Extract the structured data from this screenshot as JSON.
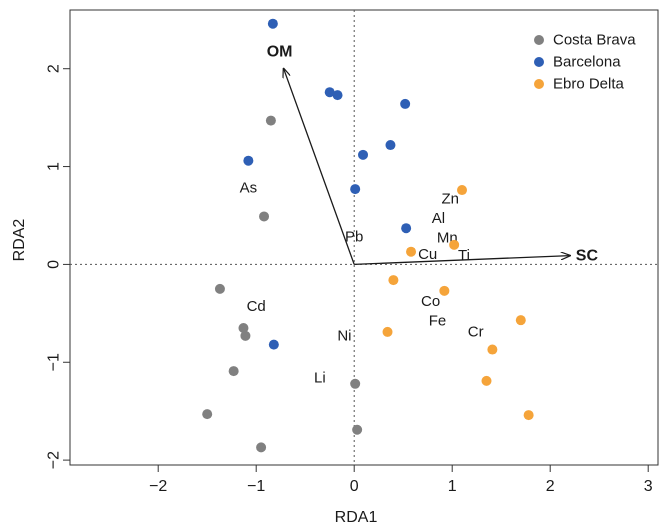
{
  "chart_data": {
    "type": "scatter",
    "xlabel": "RDA1",
    "ylabel": "RDA2",
    "xlim": [
      -2.9,
      3.1
    ],
    "ylim": [
      -2.05,
      2.6
    ],
    "xticks": [
      -2,
      -1,
      0,
      1,
      2,
      3
    ],
    "yticks": [
      -2,
      -1,
      0,
      1,
      2
    ],
    "grid": false,
    "zero_lines": "dotted",
    "legend_position": "top-right",
    "series": [
      {
        "name": "Costa Brava",
        "color": "#808080",
        "points": [
          {
            "x": -0.85,
            "y": 1.47
          },
          {
            "x": -0.92,
            "y": 0.49
          },
          {
            "x": -1.37,
            "y": -0.25
          },
          {
            "x": -1.13,
            "y": -0.65
          },
          {
            "x": -1.11,
            "y": -0.73
          },
          {
            "x": -1.23,
            "y": -1.09
          },
          {
            "x": -1.5,
            "y": -1.53
          },
          {
            "x": -0.95,
            "y": -1.87
          },
          {
            "x": 0.01,
            "y": -1.22
          },
          {
            "x": 0.03,
            "y": -1.69
          }
        ]
      },
      {
        "name": "Barcelona",
        "color": "#2e5fb5",
        "points": [
          {
            "x": -0.83,
            "y": 2.46
          },
          {
            "x": -0.25,
            "y": 1.76
          },
          {
            "x": -0.17,
            "y": 1.73
          },
          {
            "x": 0.52,
            "y": 1.64
          },
          {
            "x": 0.37,
            "y": 1.22
          },
          {
            "x": 0.09,
            "y": 1.12
          },
          {
            "x": -1.08,
            "y": 1.06
          },
          {
            "x": 0.01,
            "y": 0.77
          },
          {
            "x": 0.53,
            "y": 0.37
          },
          {
            "x": -0.82,
            "y": -0.82
          }
        ]
      },
      {
        "name": "Ebro Delta",
        "color": "#f5a43a",
        "points": [
          {
            "x": 1.1,
            "y": 0.76
          },
          {
            "x": 1.02,
            "y": 0.2
          },
          {
            "x": 0.58,
            "y": 0.13
          },
          {
            "x": 0.4,
            "y": -0.16
          },
          {
            "x": 0.92,
            "y": -0.27
          },
          {
            "x": 0.34,
            "y": -0.69
          },
          {
            "x": 1.7,
            "y": -0.57
          },
          {
            "x": 1.41,
            "y": -0.87
          },
          {
            "x": 1.35,
            "y": -1.19
          },
          {
            "x": 1.78,
            "y": -1.54
          }
        ]
      }
    ],
    "arrows": [
      {
        "label": "OM",
        "x": -0.72,
        "y": 2.0
      },
      {
        "label": "SC",
        "x": 2.2,
        "y": 0.09
      }
    ],
    "variable_labels": [
      {
        "text": "As",
        "x": -1.08,
        "y": 0.78
      },
      {
        "text": "Zn",
        "x": 0.98,
        "y": 0.67
      },
      {
        "text": "Al",
        "x": 0.86,
        "y": 0.47
      },
      {
        "text": "Pb",
        "x": 0.0,
        "y": 0.28
      },
      {
        "text": "Mn",
        "x": 0.95,
        "y": 0.27
      },
      {
        "text": "Cu",
        "x": 0.75,
        "y": 0.1
      },
      {
        "text": "Ti",
        "x": 1.12,
        "y": 0.09
      },
      {
        "text": "Cd",
        "x": -1.0,
        "y": -0.43
      },
      {
        "text": "Co",
        "x": 0.78,
        "y": -0.38
      },
      {
        "text": "Fe",
        "x": 0.85,
        "y": -0.58
      },
      {
        "text": "Cr",
        "x": 1.24,
        "y": -0.69
      },
      {
        "text": "Ni",
        "x": -0.1,
        "y": -0.73
      },
      {
        "text": "Li",
        "x": -0.35,
        "y": -1.16
      }
    ]
  }
}
